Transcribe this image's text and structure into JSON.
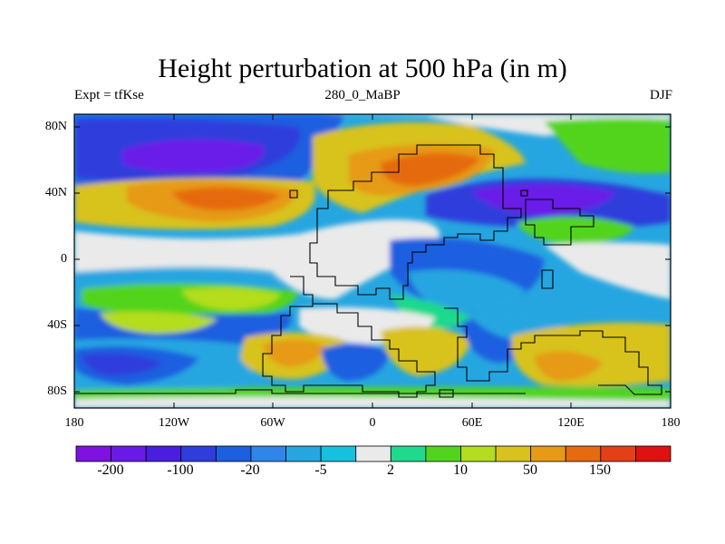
{
  "title": "Height perturbation at 500 hPa (in m)",
  "subtitle_left": "Expt = tfKse",
  "subtitle_center": "280_0_MaBP",
  "subtitle_right": "DJF",
  "lat_labels": [
    "80N",
    "40N",
    "0",
    "40S",
    "80S"
  ],
  "lon_labels": [
    "180",
    "120W",
    "60W",
    "0",
    "60E",
    "120E",
    "180"
  ],
  "colorbar": {
    "labels": [
      "-200",
      "-100",
      "-20",
      "-5",
      "2",
      "10",
      "50",
      "150"
    ],
    "colors": [
      "#7e12e0",
      "#6a1ae8",
      "#4a1ee0",
      "#2e3ddb",
      "#1c5fe0",
      "#2f86e8",
      "#26a6e0",
      "#14c1de",
      "#eaeaea",
      "#1fd98d",
      "#52d41f",
      "#b4dd1d",
      "#d8c21b",
      "#e69a16",
      "#e56a10",
      "#e3401a",
      "#df1111"
    ]
  },
  "map_colors": {
    "land_outline": "#000000",
    "deep_negative": "#6a1ae8",
    "strong_negative": "#2e3ddb",
    "moderate_negative": "#1c5fe0",
    "weak_negative": "#26a6e0",
    "neutral": "#eaeaea",
    "weak_positive": "#52d41f",
    "moderate_positive": "#d8c21b",
    "strong_positive": "#e69a16",
    "very_positive": "#e56a10"
  }
}
